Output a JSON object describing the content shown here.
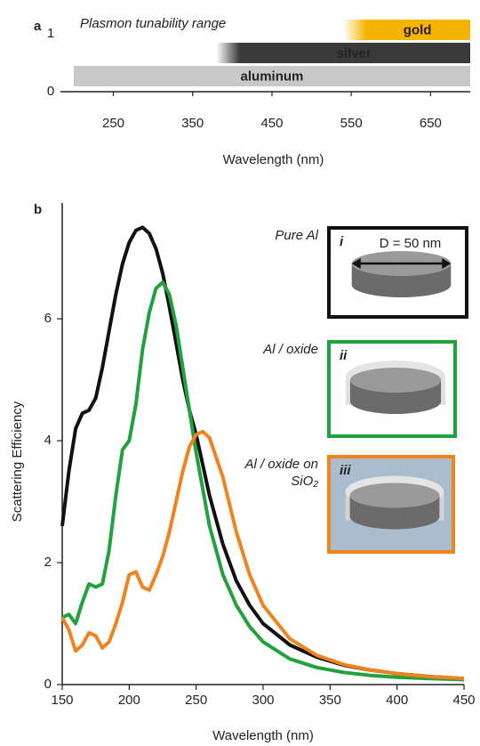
{
  "chart_data": [
    {
      "type": "range-bar",
      "panel_label": "a",
      "title": "Plasmon tunability range",
      "categories": [
        "aluminum",
        "silver",
        "gold"
      ],
      "starts": [
        200,
        380,
        540
      ],
      "ends": [
        700,
        700,
        700
      ],
      "colors": [
        "#c8c8c8",
        "#3a3a3a",
        "#f6b400"
      ],
      "fade_in": [
        false,
        true,
        true
      ],
      "xlabel": "Wavelength (nm)",
      "xlim": [
        190,
        700
      ],
      "xticks": [
        250,
        350,
        450,
        550,
        650
      ],
      "ylim": [
        0,
        1
      ],
      "yticks": [
        0,
        1
      ]
    },
    {
      "type": "line",
      "panel_label": "b",
      "xlabel": "Wavelength (nm)",
      "ylabel": "Scattering Efficiency",
      "x": [
        150,
        155,
        160,
        165,
        170,
        175,
        180,
        185,
        190,
        195,
        200,
        205,
        210,
        215,
        220,
        225,
        230,
        235,
        240,
        245,
        250,
        255,
        260,
        270,
        280,
        290,
        300,
        320,
        340,
        360,
        380,
        400,
        425,
        450
      ],
      "series": [
        {
          "name": "Pure Al",
          "color": "#111111",
          "values": [
            2.6,
            3.5,
            4.2,
            4.45,
            4.5,
            4.7,
            5.2,
            5.8,
            6.4,
            6.9,
            7.25,
            7.45,
            7.5,
            7.4,
            7.15,
            6.75,
            6.2,
            5.6,
            5.0,
            4.5,
            4.1,
            3.6,
            3.1,
            2.3,
            1.7,
            1.3,
            1.0,
            0.65,
            0.45,
            0.32,
            0.24,
            0.18,
            0.13,
            0.1
          ]
        },
        {
          "name": "Al / oxide",
          "color": "#22a23c",
          "values": [
            1.1,
            1.15,
            1.0,
            1.35,
            1.65,
            1.6,
            1.65,
            2.2,
            3.1,
            3.85,
            4.0,
            4.6,
            5.5,
            6.1,
            6.5,
            6.6,
            6.4,
            5.9,
            5.2,
            4.5,
            3.8,
            3.2,
            2.6,
            1.8,
            1.3,
            0.95,
            0.7,
            0.42,
            0.28,
            0.2,
            0.15,
            0.12,
            0.1,
            0.08
          ]
        },
        {
          "name": "Al / oxide on SiO₂",
          "color": "#f0831e",
          "values": [
            1.1,
            0.9,
            0.55,
            0.65,
            0.85,
            0.8,
            0.6,
            0.7,
            1.0,
            1.35,
            1.8,
            1.85,
            1.6,
            1.55,
            1.8,
            2.1,
            2.5,
            3.0,
            3.5,
            3.9,
            4.1,
            4.15,
            4.05,
            3.4,
            2.5,
            1.8,
            1.3,
            0.75,
            0.48,
            0.33,
            0.24,
            0.18,
            0.13,
            0.1
          ]
        }
      ],
      "inset_labels": [
        "i",
        "ii",
        "iii"
      ],
      "annotation": "D = 50 nm",
      "xlim": [
        150,
        450
      ],
      "xticks": [
        150,
        200,
        250,
        300,
        350,
        400,
        450
      ],
      "ylim": [
        0,
        7.9
      ],
      "yticks": [
        0,
        2,
        4,
        6
      ]
    }
  ]
}
